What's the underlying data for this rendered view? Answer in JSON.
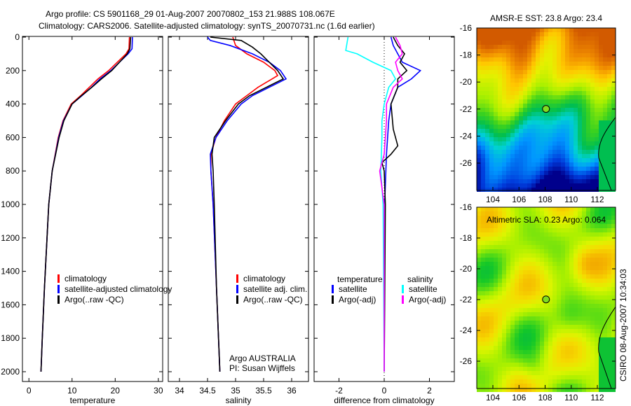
{
  "title_line1": "Argo profile: CS 5901168_29 01-Aug-2007 20070802_153 21.988S 108.067E",
  "title_line2": "Climatology: CARS2006. Satellite-adjusted climatology: synTS_20070731.nc (1.6d earlier)",
  "side_label": "CSIRO 08-Aug-2007 10:34:03",
  "colors": {
    "climatology": "#ff0000",
    "satellite": "#0000ff",
    "argo": "#000000",
    "sal_satellite": "#00ffff",
    "sal_argo": "#ff00ff"
  },
  "chart_data": [
    {
      "type": "line",
      "xlabel": "temperature",
      "ylabel": "",
      "xlim": [
        -1.5,
        31
      ],
      "ylim": [
        2000,
        0
      ],
      "xticks": [
        "0",
        "10",
        "20",
        "30"
      ],
      "yticks": [
        "0",
        "200",
        "400",
        "600",
        "800",
        "1000",
        "1200",
        "1400",
        "1600",
        "1800",
        "2000"
      ],
      "legend": [
        "climatology",
        "satellite-adjusted climatology",
        "Argo(..raw -QC)"
      ],
      "series": [
        {
          "name": "climatology",
          "color": "#ff0000",
          "points": [
            [
              0,
              23.3
            ],
            [
              70,
              23.2
            ],
            [
              100,
              22.5
            ],
            [
              150,
              20.5
            ],
            [
              200,
              18.5
            ],
            [
              250,
              16
            ],
            [
              300,
              14
            ],
            [
              350,
              12
            ],
            [
              400,
              9.8
            ],
            [
              500,
              7.9
            ],
            [
              600,
              6.8
            ],
            [
              800,
              5.4
            ],
            [
              1000,
              4.6
            ],
            [
              1200,
              4.2
            ],
            [
              1500,
              3.6
            ],
            [
              1800,
              3.1
            ],
            [
              2000,
              2.8
            ]
          ]
        },
        {
          "name": "satellite-adjusted climatology",
          "color": "#0000ff",
          "points": [
            [
              0,
              24
            ],
            [
              70,
              23.9
            ],
            [
              100,
              23
            ],
            [
              150,
              21
            ],
            [
              200,
              19
            ],
            [
              250,
              16.5
            ],
            [
              300,
              14.5
            ],
            [
              350,
              12.3
            ],
            [
              400,
              10
            ],
            [
              500,
              8
            ],
            [
              600,
              6.9
            ],
            [
              800,
              5.4
            ],
            [
              1000,
              4.6
            ],
            [
              1200,
              4.2
            ],
            [
              1500,
              3.6
            ],
            [
              1800,
              3.1
            ],
            [
              2000,
              2.8
            ]
          ]
        },
        {
          "name": "Argo(..raw -QC)",
          "color": "#000000",
          "points": [
            [
              0,
              23.6
            ],
            [
              70,
              23.4
            ],
            [
              100,
              22.8
            ],
            [
              150,
              21
            ],
            [
              200,
              19.2
            ],
            [
              250,
              16.8
            ],
            [
              300,
              14.6
            ],
            [
              350,
              12.2
            ],
            [
              400,
              10
            ],
            [
              500,
              8.1
            ],
            [
              600,
              7
            ],
            [
              700,
              6.2
            ],
            [
              800,
              5.4
            ],
            [
              1000,
              4.6
            ],
            [
              1200,
              4.2
            ],
            [
              1500,
              3.6
            ],
            [
              1800,
              3.1
            ],
            [
              2000,
              2.8
            ]
          ]
        }
      ]
    },
    {
      "type": "line",
      "xlabel": "salinity",
      "ylabel": "",
      "xlim": [
        33.8,
        36.3
      ],
      "ylim": [
        2000,
        0
      ],
      "xticks": [
        "34",
        "34.5",
        "35",
        "35.5",
        "36"
      ],
      "legend": [
        "climatology",
        "satellite adj. clim.",
        "Argo(..raw -QC)"
      ],
      "annotation": [
        "Argo AUSTRALIA",
        "PI: Susan Wijffels"
      ],
      "series": [
        {
          "name": "climatology",
          "color": "#ff0000",
          "points": [
            [
              0,
              34.95
            ],
            [
              50,
              35.0
            ],
            [
              100,
              35.2
            ],
            [
              150,
              35.5
            ],
            [
              200,
              35.7
            ],
            [
              230,
              35.75
            ],
            [
              260,
              35.6
            ],
            [
              300,
              35.4
            ],
            [
              350,
              35.2
            ],
            [
              400,
              35.0
            ],
            [
              450,
              34.9
            ],
            [
              500,
              34.8
            ],
            [
              600,
              34.65
            ],
            [
              700,
              34.56
            ],
            [
              800,
              34.56
            ],
            [
              1000,
              34.6
            ],
            [
              1500,
              34.66
            ],
            [
              2000,
              34.72
            ]
          ]
        },
        {
          "name": "satellite adj. clim.",
          "color": "#0000ff",
          "points": [
            [
              0,
              34.5
            ],
            [
              20,
              34.55
            ],
            [
              50,
              34.9
            ],
            [
              100,
              35.3
            ],
            [
              150,
              35.6
            ],
            [
              200,
              35.8
            ],
            [
              250,
              35.9
            ],
            [
              300,
              35.6
            ],
            [
              350,
              35.3
            ],
            [
              400,
              35.1
            ],
            [
              500,
              34.85
            ],
            [
              600,
              34.65
            ],
            [
              700,
              34.55
            ],
            [
              800,
              34.56
            ],
            [
              1000,
              34.6
            ],
            [
              1500,
              34.66
            ],
            [
              2000,
              34.72
            ]
          ]
        },
        {
          "name": "Argo(..raw -QC)",
          "color": "#000000",
          "points": [
            [
              0,
              34.55
            ],
            [
              20,
              35.1
            ],
            [
              60,
              35.3
            ],
            [
              100,
              35.45
            ],
            [
              150,
              35.6
            ],
            [
              200,
              35.75
            ],
            [
              250,
              35.85
            ],
            [
              300,
              35.55
            ],
            [
              350,
              35.25
            ],
            [
              400,
              35.05
            ],
            [
              500,
              34.82
            ],
            [
              600,
              34.62
            ],
            [
              700,
              34.58
            ],
            [
              800,
              34.6
            ],
            [
              1000,
              34.62
            ],
            [
              1500,
              34.66
            ],
            [
              2000,
              34.72
            ]
          ]
        }
      ]
    },
    {
      "type": "line",
      "xlabel": "difference from climatology",
      "ylabel": "",
      "xlim": [
        -3.1,
        3.1
      ],
      "ylim": [
        2000,
        0
      ],
      "xticks": [
        "-2",
        "0",
        "2"
      ],
      "legend_headers": [
        "temperature",
        "salinity"
      ],
      "legend": [
        "satellite",
        "Argo(-adj)",
        "satellite",
        "Argo(-adj)"
      ],
      "series": [
        {
          "name": "temperature satellite",
          "color": "#0000ff",
          "points": [
            [
              0,
              0.3
            ],
            [
              50,
              0.4
            ],
            [
              150,
              0.8
            ],
            [
              200,
              1.6
            ],
            [
              250,
              1.2
            ],
            [
              300,
              0.6
            ],
            [
              400,
              0.3
            ],
            [
              500,
              0.2
            ],
            [
              700,
              0.1
            ],
            [
              1000,
              0.02
            ],
            [
              2000,
              0
            ]
          ]
        },
        {
          "name": "temperature Argo(-adj)",
          "color": "#000000",
          "points": [
            [
              0,
              0.4
            ],
            [
              50,
              0.6
            ],
            [
              100,
              0.9
            ],
            [
              150,
              0.7
            ],
            [
              200,
              1.0
            ],
            [
              250,
              0.6
            ],
            [
              300,
              0.6
            ],
            [
              400,
              0.3
            ],
            [
              550,
              0.4
            ],
            [
              650,
              0.6
            ],
            [
              700,
              0.3
            ],
            [
              750,
              -0.1
            ],
            [
              800,
              0
            ],
            [
              1000,
              0.05
            ],
            [
              2000,
              0
            ]
          ]
        },
        {
          "name": "salinity satellite",
          "color": "#00ffff",
          "points": [
            [
              0,
              -1.6
            ],
            [
              80,
              -1.7
            ],
            [
              100,
              -1.2
            ],
            [
              150,
              -0.5
            ],
            [
              200,
              0.3
            ],
            [
              250,
              0.5
            ],
            [
              300,
              0.2
            ],
            [
              400,
              0
            ],
            [
              500,
              -0.1
            ],
            [
              600,
              -0.1
            ],
            [
              800,
              -0.15
            ],
            [
              1000,
              -0.05
            ],
            [
              2000,
              0
            ]
          ]
        },
        {
          "name": "salinity Argo(-adj)",
          "color": "#ff00ff",
          "points": [
            [
              0,
              0.5
            ],
            [
              50,
              0.7
            ],
            [
              100,
              0.8
            ],
            [
              150,
              0.5
            ],
            [
              200,
              0.6
            ],
            [
              250,
              0.8
            ],
            [
              300,
              0.4
            ],
            [
              400,
              0.1
            ],
            [
              500,
              0.1
            ],
            [
              700,
              0
            ],
            [
              800,
              -0.2
            ],
            [
              900,
              -0.1
            ],
            [
              1000,
              0
            ],
            [
              2000,
              0
            ]
          ]
        }
      ]
    },
    {
      "type": "heatmap",
      "title": "AMSR-E SST: 23.8 Argo: 23.4",
      "xticks": [
        "104",
        "106",
        "108",
        "110",
        "112"
      ],
      "yticks": [
        "-16",
        "-18",
        "-20",
        "-22",
        "-24",
        "-26"
      ],
      "xlim": [
        102.7,
        113.5
      ],
      "ylim": [
        -27.9,
        -16
      ],
      "marker": [
        108.067,
        -21.988
      ]
    },
    {
      "type": "heatmap",
      "title": "Altimetric SLA: 0.23 Argo: 0.064",
      "xticks": [
        "104",
        "106",
        "108",
        "110",
        "112"
      ],
      "yticks": [
        "-16",
        "-18",
        "-20",
        "-22",
        "-24",
        "-26"
      ],
      "xlim": [
        102.7,
        113.5
      ],
      "ylim": [
        -27.9,
        -16
      ],
      "marker": [
        108.067,
        -21.988
      ]
    }
  ]
}
